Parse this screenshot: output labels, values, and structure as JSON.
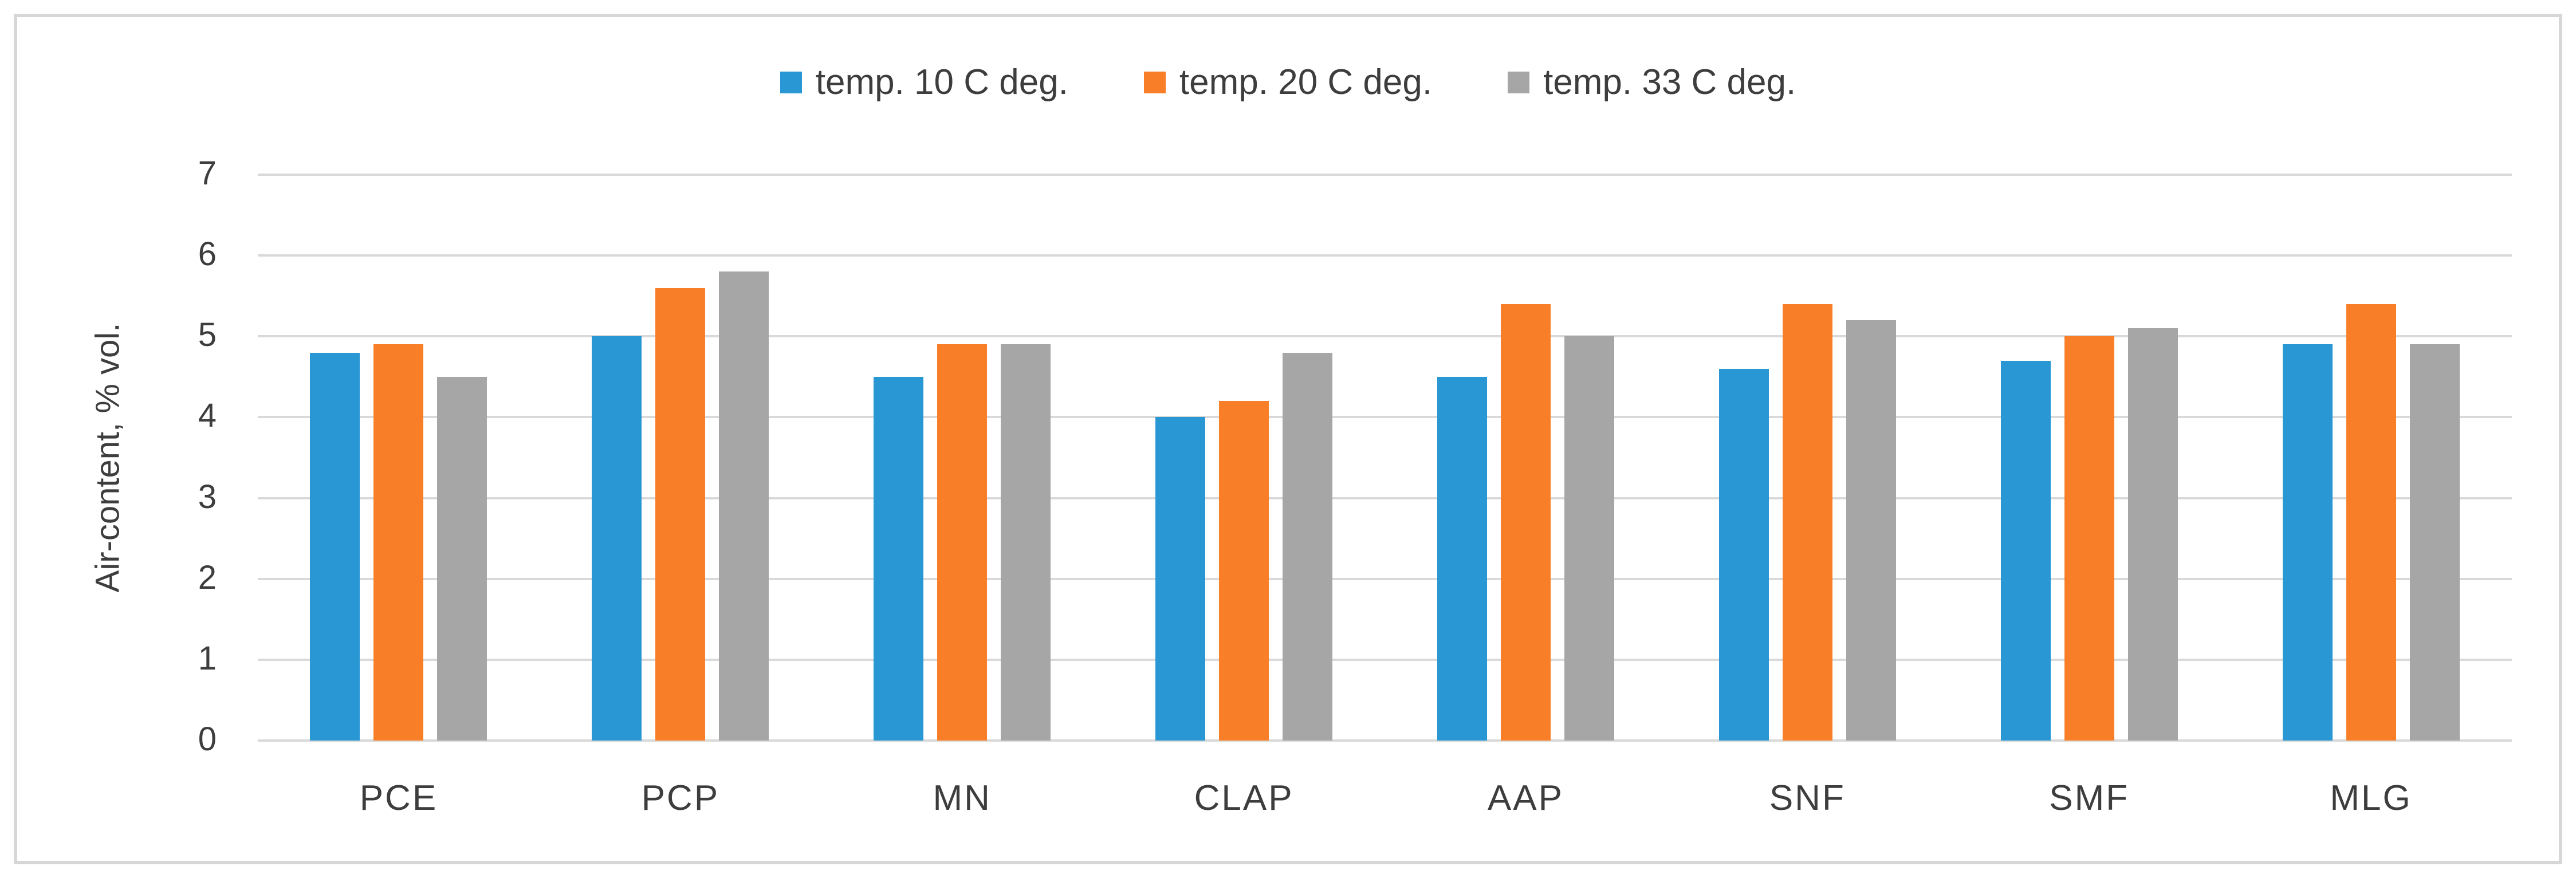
{
  "figure": {
    "background_color": "#ffffff",
    "border_color": "#d7d7d7",
    "text_color": "#3d3d3d",
    "gridline_color": "#d9d9d9"
  },
  "chart_data": {
    "type": "bar",
    "title": "",
    "categories": [
      "PCE",
      "PCP",
      "MN",
      "CLAP",
      "AAP",
      "SNF",
      "SMF",
      "MLG"
    ],
    "series": [
      {
        "name": "temp. 10 C deg.",
        "color": "#2897d3",
        "values": [
          4.8,
          5.0,
          4.5,
          4.0,
          4.5,
          4.6,
          4.7,
          4.9
        ]
      },
      {
        "name": "temp. 20 C deg.",
        "color": "#f87f28",
        "values": [
          4.9,
          5.6,
          4.9,
          4.2,
          5.4,
          5.4,
          5.0,
          5.4
        ]
      },
      {
        "name": "temp. 33 C deg.",
        "color": "#a6a6a6",
        "values": [
          4.5,
          5.8,
          4.9,
          4.8,
          5.0,
          5.2,
          5.1,
          4.9
        ]
      }
    ],
    "xlabel": "",
    "ylabel": "Air-content, % vol.",
    "ylim": [
      0,
      7
    ],
    "yticks": [
      0,
      1,
      2,
      3,
      4,
      5,
      6,
      7
    ],
    "grid": true,
    "legend_position": "top-center"
  }
}
